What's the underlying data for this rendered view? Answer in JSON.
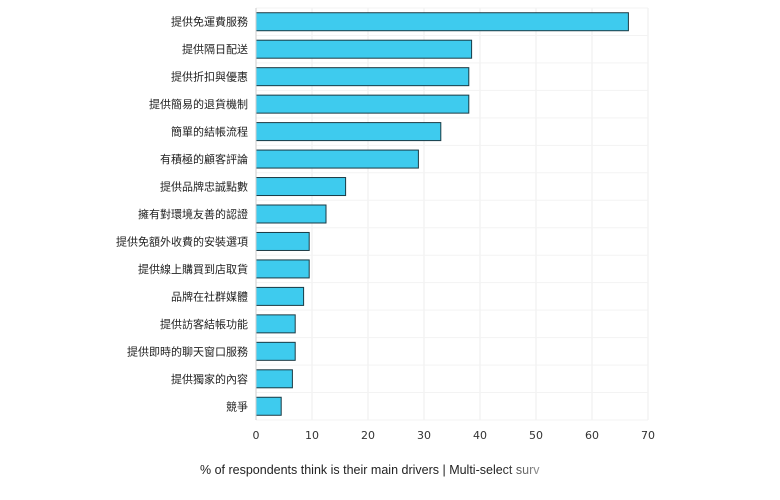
{
  "chart_data": {
    "type": "bar",
    "orientation": "horizontal",
    "categories": [
      "提供免運費服務",
      "提供隔日配送",
      "提供折扣與優惠",
      "提供簡易的退貨機制",
      "簡單的結帳流程",
      "有積極的顧客評論",
      "提供品牌忠誠點數",
      "擁有對環境友善的認證",
      "提供免額外收費的安裝選項",
      "提供線上購買到店取貨",
      "品牌在社群媒體",
      "提供訪客結帳功能",
      "提供即時的聊天窗口服務",
      "提供獨家的內容",
      "競爭"
    ],
    "values": [
      66.5,
      38.5,
      38,
      38,
      33,
      29,
      16,
      12.5,
      9.5,
      9.5,
      8.5,
      7,
      7,
      6.5,
      4.5
    ],
    "xlim": [
      0,
      70
    ],
    "xticks": [
      "0",
      "10",
      "20",
      "30",
      "40",
      "50",
      "60",
      "70"
    ],
    "xlabel": "% of respondents think is their main drivers | Multi-select surv",
    "bar_color": "#3ecbee",
    "bar_stroke": "#1a3a44",
    "grid": true
  }
}
